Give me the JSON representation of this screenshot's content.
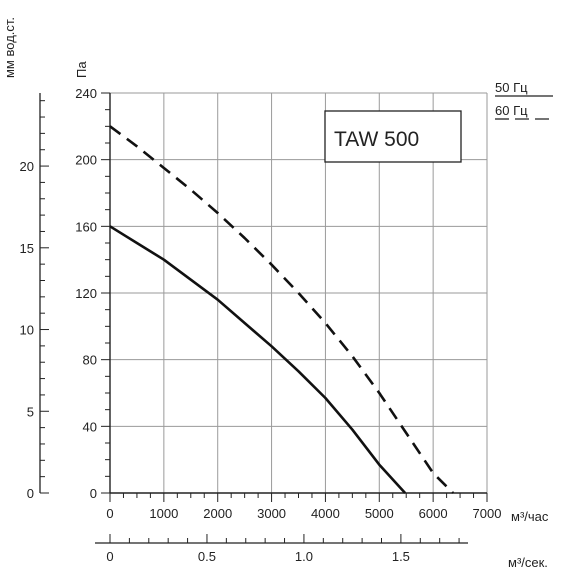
{
  "chart_data": {
    "type": "line",
    "title": "TAW 500",
    "xlabel": "м³/час",
    "ylabel": "Па",
    "xlim": [
      0,
      7000
    ],
    "ylim": [
      0,
      240
    ],
    "x_ticks": [
      0,
      1000,
      2000,
      3000,
      4000,
      5000,
      6000,
      7000
    ],
    "x_tick_labels": [
      "0",
      "1000",
      "2000",
      "3000",
      "4000",
      "5000",
      "6000",
      "7000"
    ],
    "y_ticks": [
      0,
      40,
      80,
      120,
      160,
      200,
      240
    ],
    "y_tick_labels": [
      "0",
      "40",
      "80",
      "120",
      "160",
      "200",
      "240"
    ],
    "grid": true,
    "secondary_y_axis": {
      "label": "мм вод.ст.",
      "range": [
        0,
        24.47
      ],
      "ticks": [
        0,
        5,
        10,
        15,
        20
      ],
      "tick_labels": [
        "0",
        "5",
        "10",
        "15",
        "20"
      ]
    },
    "secondary_x_axis": {
      "label": "м³/сек.",
      "range": [
        0,
        1.944
      ],
      "ticks": [
        0,
        0.5,
        1.0,
        1.5
      ],
      "tick_labels": [
        "0",
        "0.5",
        "1.0",
        "1.5"
      ]
    },
    "legend": {
      "placement": "top-right",
      "entries": [
        {
          "label": "50 Гц",
          "style": "solid"
        },
        {
          "label": "60 Гц",
          "style": "dashed"
        }
      ]
    },
    "series": [
      {
        "label": "50 Гц",
        "style": "solid",
        "color": "#111111",
        "x": [
          0,
          500,
          1000,
          1500,
          2000,
          2500,
          3000,
          3500,
          4000,
          4500,
          5000,
          5480
        ],
        "y": [
          160,
          150,
          140,
          128,
          116,
          102,
          88,
          73,
          57,
          38,
          17,
          0
        ]
      },
      {
        "label": "60 Гц",
        "style": "dashed",
        "color": "#111111",
        "x": [
          0,
          500,
          1000,
          1500,
          2000,
          2500,
          3000,
          3500,
          4000,
          4500,
          5000,
          5500,
          6000,
          6370
        ],
        "y": [
          220,
          208,
          195,
          182,
          168,
          153,
          137,
          120,
          102,
          82,
          60,
          36,
          12,
          0
        ]
      }
    ]
  }
}
